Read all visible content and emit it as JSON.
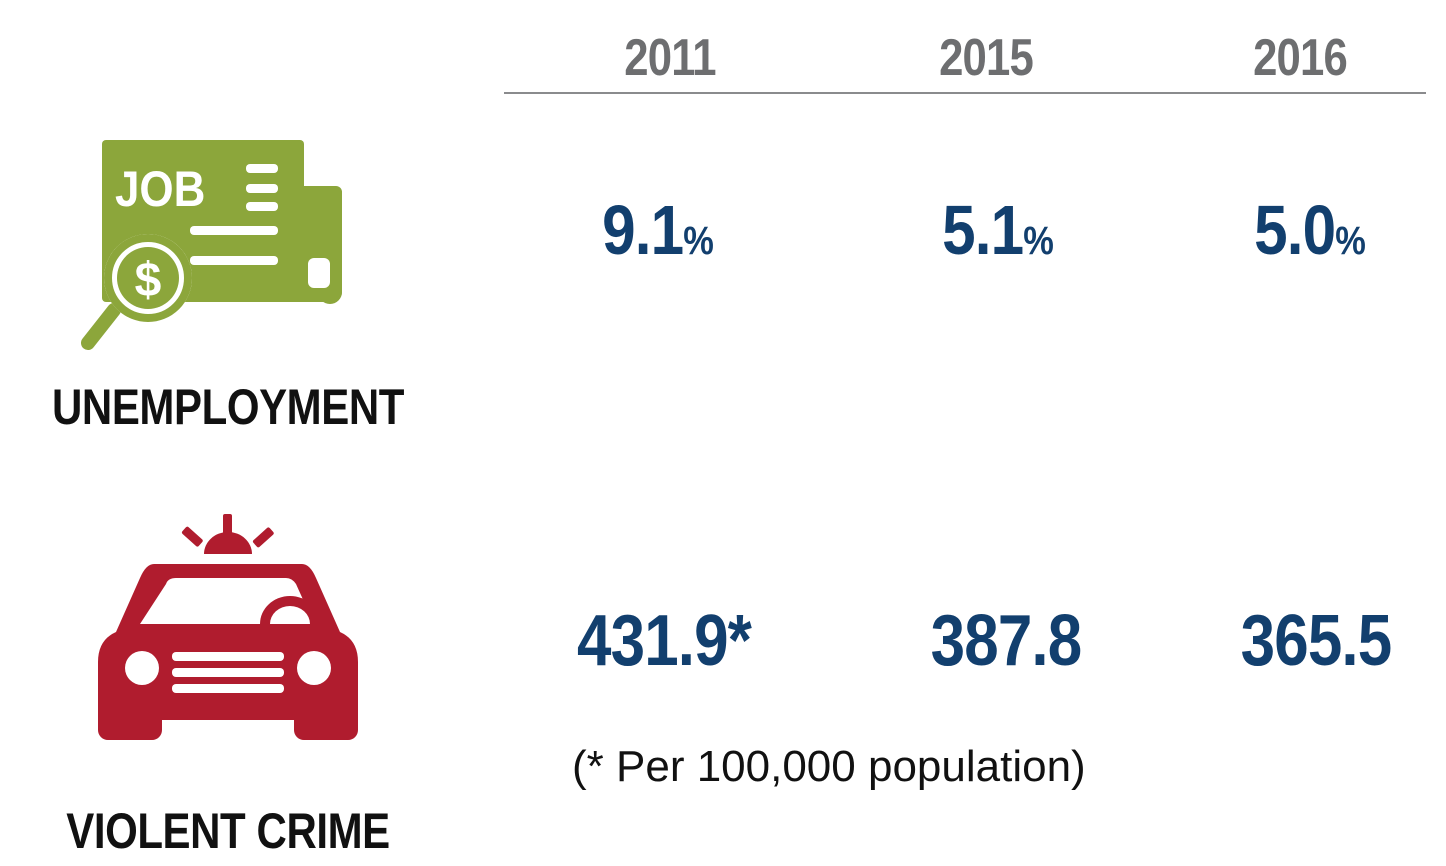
{
  "header": {
    "years": [
      "2011",
      "2015",
      "2016"
    ]
  },
  "unemployment": {
    "label": "UNEMPLOYMENT",
    "icon_text": "JOB",
    "icon_symbol": "$",
    "icon": "job-search-icon",
    "color": "#8ca63b",
    "values": [
      "9.1",
      "5.1",
      "5.0"
    ],
    "unit": "%"
  },
  "violent_crime": {
    "label": "VIOLENT CRIME",
    "icon": "police-car-icon",
    "color": "#b01c2e",
    "values": [
      "431.9*",
      "387.8",
      "365.5"
    ],
    "note": "(* Per 100,000 population)"
  },
  "colors": {
    "value": "#123f6e",
    "year": "#6d6e70",
    "label": "#111111"
  }
}
